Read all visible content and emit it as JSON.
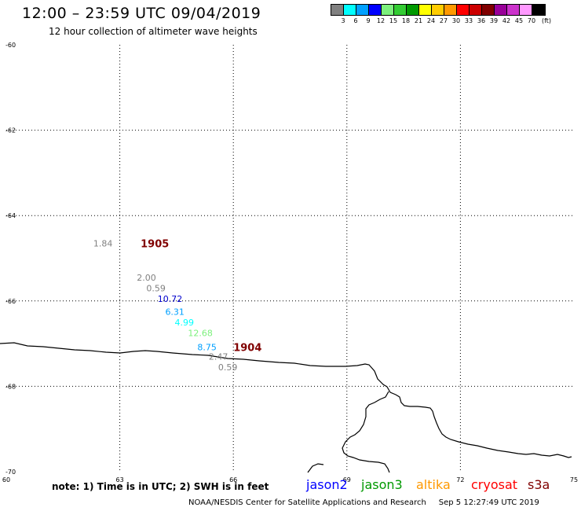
{
  "header": {
    "title": "12:00 – 23:59 UTC 09/04/2019",
    "subtitle": "12 hour collection of altimeter wave heights"
  },
  "colorbar": {
    "colors": [
      "#808080",
      "#00ffff",
      "#00a0ff",
      "#0000ff",
      "#7cf07c",
      "#33cc33",
      "#009900",
      "#ffff00",
      "#ffcc00",
      "#ff9900",
      "#ff0000",
      "#cc0000",
      "#800000",
      "#990099",
      "#cc33cc",
      "#ff99ff",
      "#000000"
    ],
    "labels": [
      "3",
      "6",
      "9",
      "12",
      "15",
      "18",
      "21",
      "24",
      "27",
      "30",
      "33",
      "36",
      "39",
      "42",
      "45",
      "70"
    ],
    "unit": "(ft)"
  },
  "map": {
    "lon_range": [
      60,
      75
    ],
    "lat_range": [
      -60,
      -70
    ],
    "x_ticks": [
      "60",
      "63",
      "66",
      "69",
      "72",
      "75"
    ],
    "y_ticks": [
      "-60",
      "-62",
      "-64",
      "-66",
      "-68",
      "-70"
    ],
    "gridlines": "dotted",
    "observations": [
      {
        "text": "1.84",
        "lon": 62.3,
        "lat": -64.65,
        "color": "#808080"
      },
      {
        "text": "2.00",
        "lon": 63.45,
        "lat": -65.45,
        "color": "#808080"
      },
      {
        "text": "0.59",
        "lon": 63.7,
        "lat": -65.7,
        "color": "#808080"
      },
      {
        "text": "10.72",
        "lon": 64.0,
        "lat": -65.95,
        "color": "#0000cc"
      },
      {
        "text": "6.31",
        "lon": 64.2,
        "lat": -66.25,
        "color": "#00a0ff"
      },
      {
        "text": "4.99",
        "lon": 64.45,
        "lat": -66.5,
        "color": "#00ffff"
      },
      {
        "text": "12.68",
        "lon": 64.8,
        "lat": -66.75,
        "color": "#7cf07c"
      },
      {
        "text": "8.75",
        "lon": 65.05,
        "lat": -67.08,
        "color": "#00a0ff"
      },
      {
        "text": "2.47",
        "lon": 65.35,
        "lat": -67.3,
        "color": "#808080"
      },
      {
        "text": "0.59",
        "lon": 65.6,
        "lat": -67.55,
        "color": "#808080"
      }
    ],
    "date_labels": [
      {
        "text": "1905",
        "lon": 63.55,
        "lat": -64.65,
        "color": "#800000"
      },
      {
        "text": "1904",
        "lon": 66.0,
        "lat": -67.08,
        "color": "#800000"
      }
    ]
  },
  "footer": {
    "note": "note: 1) Time is in UTC; 2) SWH is in feet",
    "satellites": [
      {
        "name": "jason2",
        "color": "#0000ff"
      },
      {
        "name": "jason3",
        "color": "#009900"
      },
      {
        "name": "altika",
        "color": "#ff9900"
      },
      {
        "name": "cryosat",
        "color": "#ff0000"
      },
      {
        "name": "s3a",
        "color": "#800000"
      }
    ],
    "credit": "NOAA/NESDIS Center for Satellite Applications and Research",
    "timestamp": "Sep  5 12:27:49 UTC 2019"
  }
}
